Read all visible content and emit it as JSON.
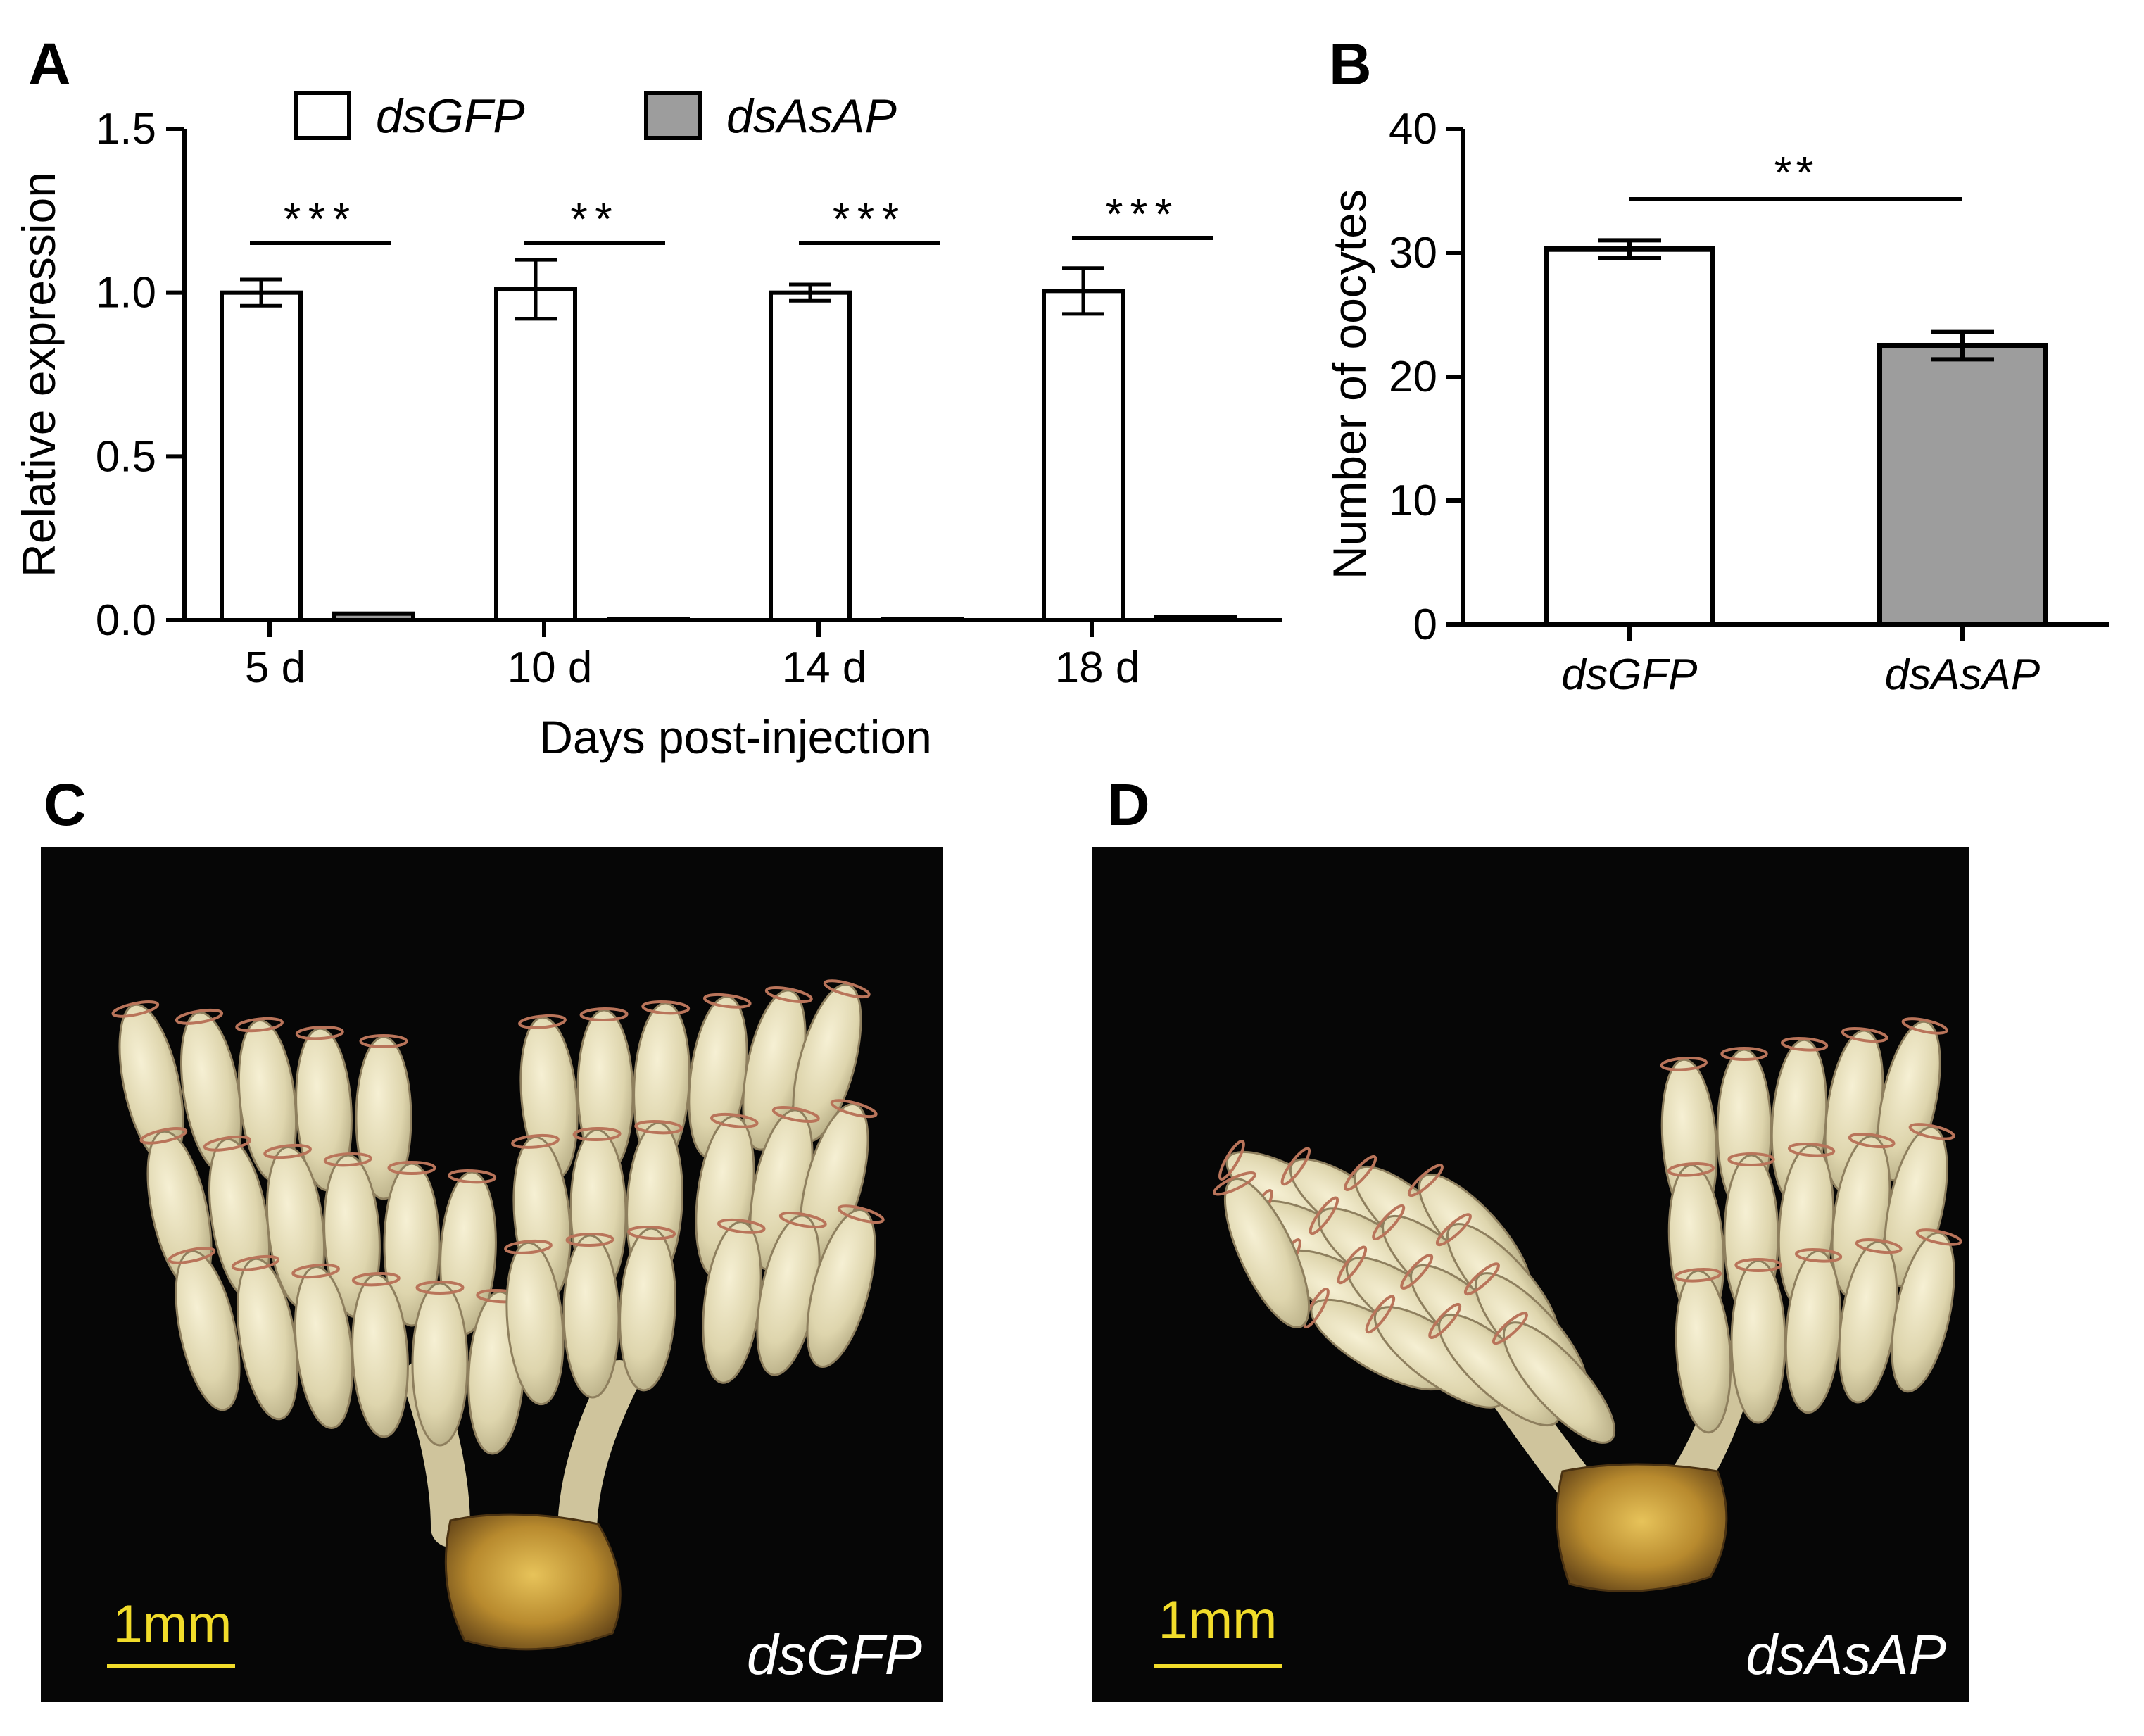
{
  "panels": {
    "a": "A",
    "b": "B",
    "c": "C",
    "d": "D"
  },
  "chart_data": [
    {
      "type": "bar",
      "ylabel": "Relative expression",
      "xlabel": "Days post-injection",
      "ylim": [
        0,
        1.5
      ],
      "yticks": [
        "0.0",
        "0.5",
        "1.0",
        "1.5"
      ],
      "categories": [
        "5 d",
        "10 d",
        "14 d",
        "18 d"
      ],
      "legend_placement": "top",
      "series": [
        {
          "name": "dsGFP",
          "color": "#ffffff",
          "values": [
            1.0,
            1.01,
            1.0,
            1.005
          ],
          "errors": [
            0.04,
            0.09,
            0.025,
            0.07
          ]
        },
        {
          "name": "dsAsAP",
          "color": "#9d9d9d",
          "values": [
            0.02,
            0.003,
            0.004,
            0.01
          ],
          "errors": [
            0.004,
            0.001,
            0.001,
            0.002
          ]
        }
      ],
      "significance": [
        "***",
        "**",
        "***",
        "***"
      ]
    },
    {
      "type": "bar",
      "ylabel": "Number of oocytes",
      "ylim": [
        0,
        40
      ],
      "yticks": [
        "0",
        "10",
        "20",
        "30",
        "40"
      ],
      "categories": [
        "dsGFP",
        "dsAsAP"
      ],
      "values": [
        30.3,
        22.5
      ],
      "errors": [
        0.7,
        1.1
      ],
      "colors": [
        "#ffffff",
        "#9d9d9d"
      ],
      "significance": "**"
    }
  ],
  "photos": {
    "c": {
      "label": "dsGFP",
      "scale_bar": "1mm"
    },
    "d": {
      "label": "dsAsAP",
      "scale_bar": "1mm"
    }
  }
}
